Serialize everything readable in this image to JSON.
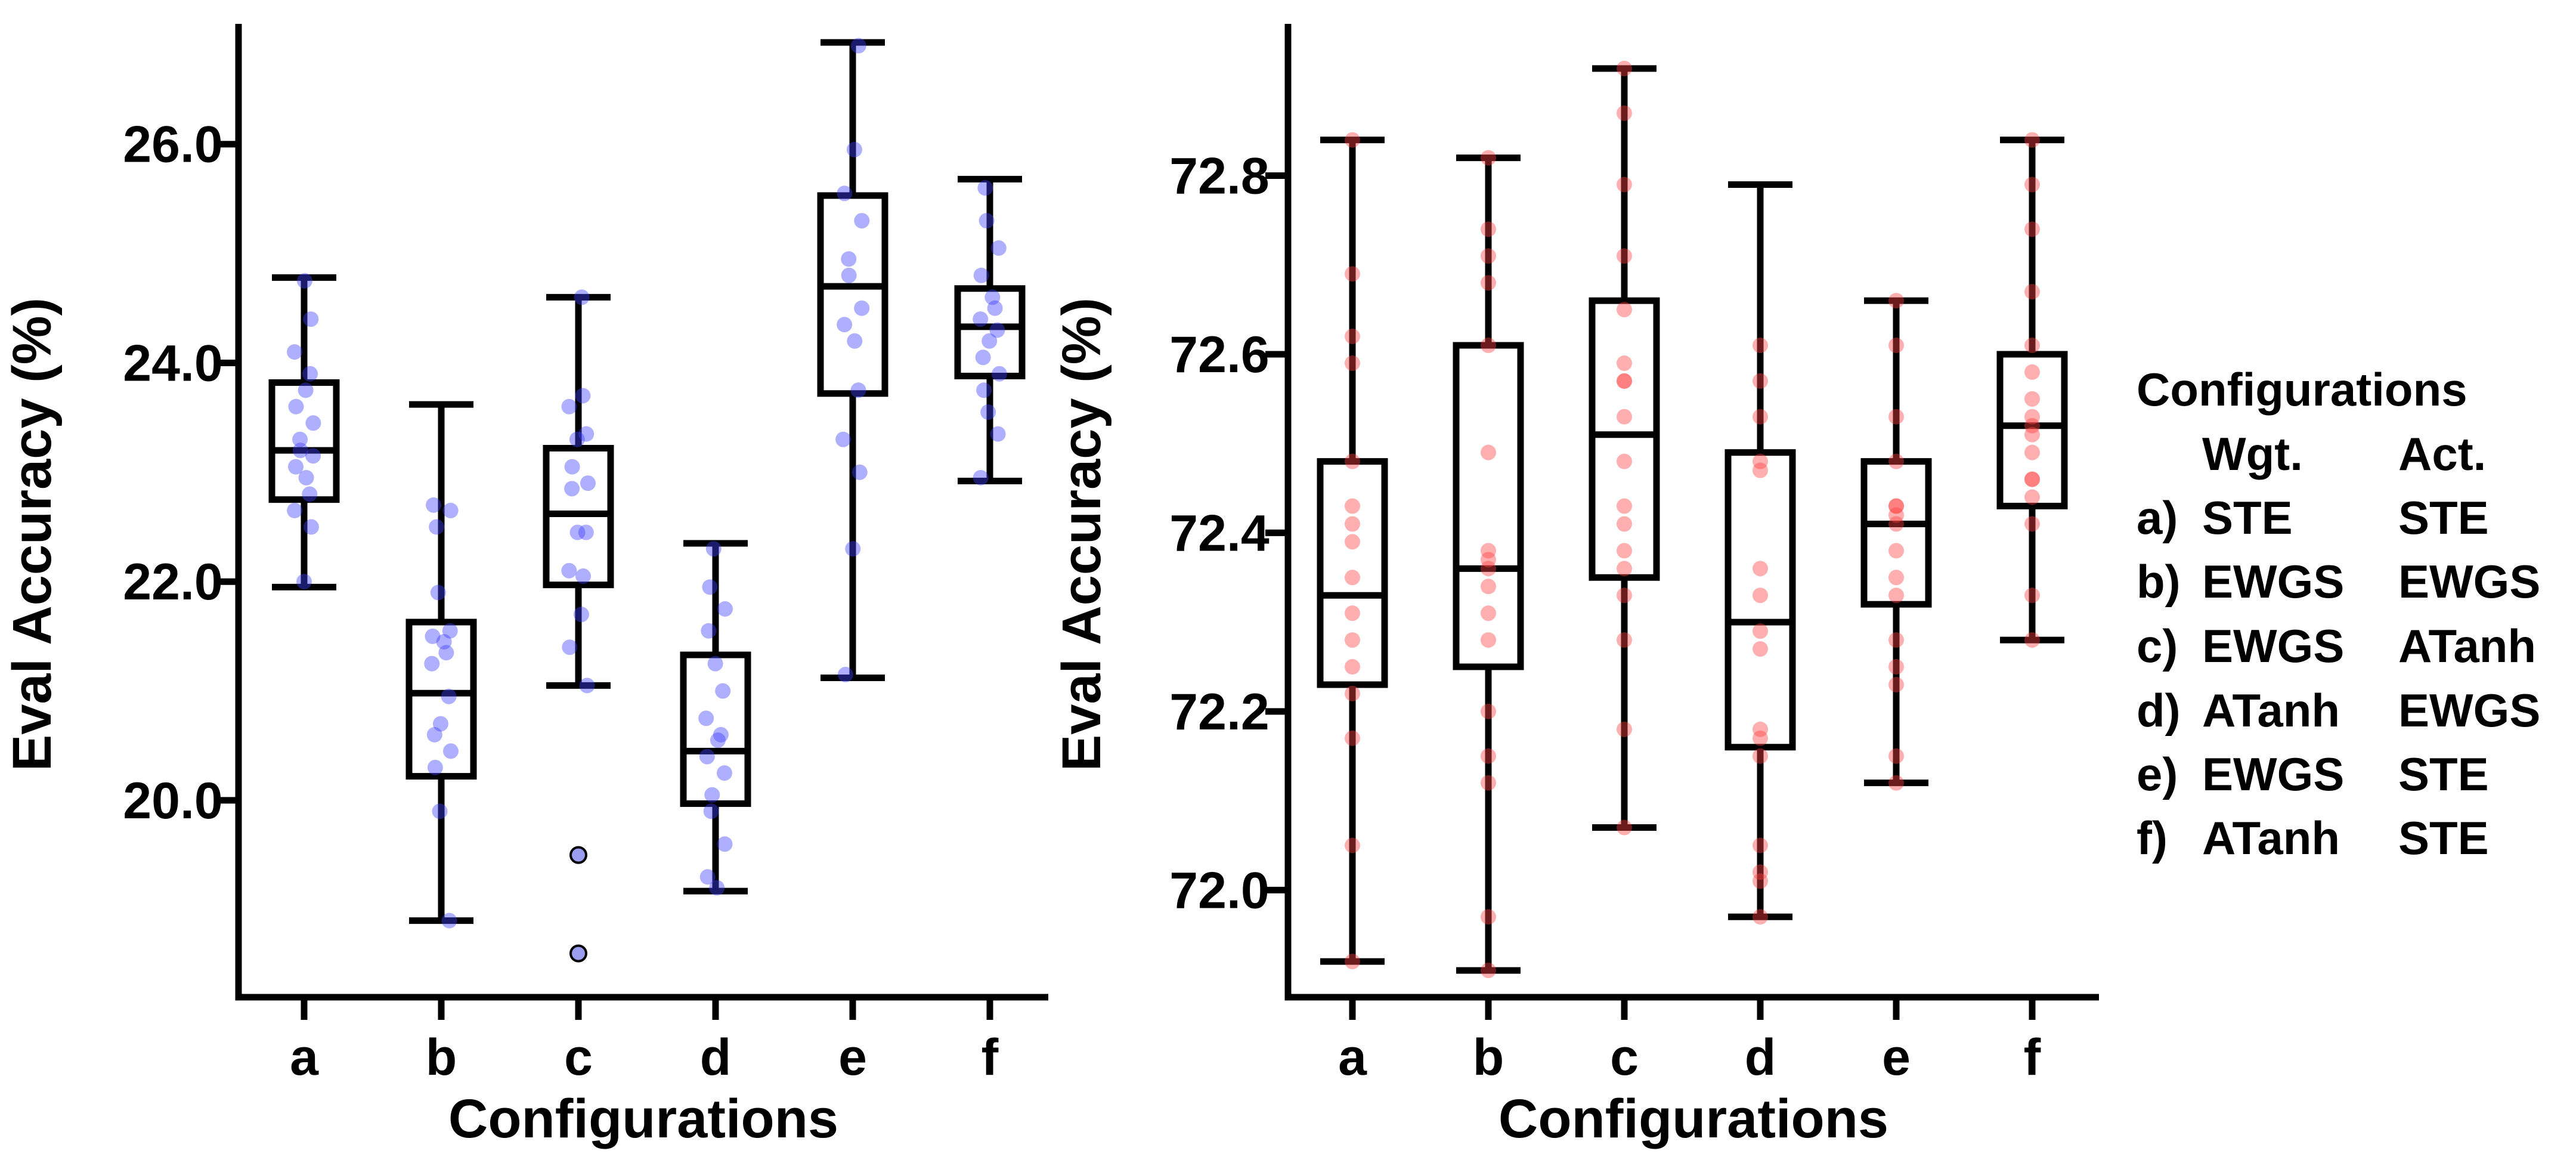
{
  "chart_data": [
    {
      "type": "box",
      "title": "",
      "xlabel": "Configurations",
      "ylabel": "Eval Accuracy (%)",
      "ylim": [
        18.2,
        27.1
      ],
      "yticks": [
        20.0,
        22.0,
        24.0,
        26.0
      ],
      "ytick_labels": [
        "20.0",
        "22.0",
        "24.0",
        "26.0"
      ],
      "categories": [
        "a",
        "b",
        "c",
        "d",
        "e",
        "f"
      ],
      "point_color": "#4040ff",
      "boxes": [
        {
          "category": "a",
          "whislo": 21.95,
          "q1": 22.75,
          "med": 23.2,
          "q3": 23.82,
          "whishi": 24.78,
          "fliers": [],
          "points": [
            22.0,
            22.5,
            22.65,
            22.8,
            22.95,
            23.05,
            23.15,
            23.2,
            23.3,
            23.45,
            23.6,
            23.75,
            23.9,
            24.1,
            24.4,
            24.75
          ]
        },
        {
          "category": "b",
          "whislo": 18.9,
          "q1": 20.22,
          "med": 20.98,
          "q3": 21.63,
          "whishi": 23.62,
          "fliers": [],
          "points": [
            18.9,
            19.9,
            20.3,
            20.45,
            20.6,
            20.7,
            20.95,
            21.25,
            21.35,
            21.45,
            21.5,
            21.55,
            21.9,
            22.5,
            22.65,
            22.7
          ]
        },
        {
          "category": "c",
          "whislo": 21.05,
          "q1": 21.97,
          "med": 22.62,
          "q3": 23.22,
          "whishi": 24.6,
          "fliers": [
            19.5,
            18.6
          ],
          "points": [
            21.05,
            21.4,
            21.7,
            22.05,
            22.1,
            22.45,
            22.45,
            22.85,
            22.9,
            23.05,
            23.3,
            23.35,
            23.6,
            23.7,
            24.6
          ]
        },
        {
          "category": "d",
          "whislo": 19.17,
          "q1": 19.97,
          "med": 20.45,
          "q3": 21.33,
          "whishi": 22.35,
          "fliers": [],
          "points": [
            19.2,
            19.3,
            19.6,
            19.9,
            20.05,
            20.25,
            20.4,
            20.55,
            20.6,
            20.75,
            21.0,
            21.25,
            21.55,
            21.75,
            21.95,
            22.3
          ]
        },
        {
          "category": "e",
          "whislo": 21.12,
          "q1": 23.72,
          "med": 24.7,
          "q3": 25.53,
          "whishi": 26.93,
          "fliers": [],
          "points": [
            21.15,
            22.3,
            23.0,
            23.3,
            23.75,
            24.2,
            24.35,
            24.5,
            24.8,
            24.95,
            25.3,
            25.55,
            25.95,
            26.9
          ]
        },
        {
          "category": "f",
          "whislo": 22.92,
          "q1": 23.88,
          "med": 24.33,
          "q3": 24.68,
          "whishi": 25.68,
          "fliers": [],
          "points": [
            22.95,
            23.35,
            23.55,
            23.75,
            23.9,
            24.05,
            24.2,
            24.3,
            24.4,
            24.5,
            24.6,
            24.8,
            25.05,
            25.3,
            25.6
          ]
        }
      ]
    },
    {
      "type": "box",
      "title": "",
      "xlabel": "Configurations",
      "ylabel": "Eval Accuracy (%)",
      "ylim": [
        71.88,
        72.97
      ],
      "yticks": [
        72.0,
        72.2,
        72.4,
        72.6,
        72.8
      ],
      "ytick_labels": [
        "72.0",
        "72.2",
        "72.4",
        "72.6",
        "72.8"
      ],
      "categories": [
        "a",
        "b",
        "c",
        "d",
        "e",
        "f"
      ],
      "point_color": "#ff4040",
      "boxes": [
        {
          "category": "a",
          "whislo": 71.92,
          "q1": 72.23,
          "med": 72.33,
          "q3": 72.48,
          "whishi": 72.84,
          "fliers": [],
          "points": [
            71.92,
            72.05,
            72.17,
            72.22,
            72.25,
            72.28,
            72.31,
            72.35,
            72.39,
            72.41,
            72.43,
            72.48,
            72.59,
            72.62,
            72.69,
            72.84
          ]
        },
        {
          "category": "b",
          "whislo": 71.91,
          "q1": 72.25,
          "med": 72.36,
          "q3": 72.61,
          "whishi": 72.82,
          "fliers": [],
          "points": [
            71.91,
            71.97,
            72.12,
            72.15,
            72.2,
            72.28,
            72.31,
            72.34,
            72.36,
            72.37,
            72.38,
            72.49,
            72.61,
            72.68,
            72.71,
            72.74,
            72.82
          ]
        },
        {
          "category": "c",
          "whislo": 72.07,
          "q1": 72.35,
          "med": 72.51,
          "q3": 72.66,
          "whishi": 72.92,
          "fliers": [],
          "points": [
            72.07,
            72.18,
            72.28,
            72.33,
            72.36,
            72.38,
            72.41,
            72.43,
            72.48,
            72.53,
            72.57,
            72.57,
            72.59,
            72.65,
            72.71,
            72.79,
            72.87,
            72.92
          ]
        },
        {
          "category": "d",
          "whislo": 71.97,
          "q1": 72.16,
          "med": 72.3,
          "q3": 72.49,
          "whishi": 72.79,
          "fliers": [],
          "points": [
            71.97,
            72.01,
            72.02,
            72.05,
            72.15,
            72.17,
            72.18,
            72.27,
            72.29,
            72.33,
            72.36,
            72.47,
            72.48,
            72.53,
            72.57,
            72.61
          ]
        },
        {
          "category": "e",
          "whislo": 72.12,
          "q1": 72.32,
          "med": 72.41,
          "q3": 72.48,
          "whishi": 72.66,
          "fliers": [],
          "points": [
            72.12,
            72.15,
            72.23,
            72.25,
            72.28,
            72.33,
            72.35,
            72.38,
            72.41,
            72.42,
            72.43,
            72.43,
            72.48,
            72.53,
            72.61,
            72.66
          ]
        },
        {
          "category": "f",
          "whislo": 72.28,
          "q1": 72.43,
          "med": 72.52,
          "q3": 72.6,
          "whishi": 72.84,
          "fliers": [],
          "points": [
            72.28,
            72.33,
            72.41,
            72.44,
            72.46,
            72.46,
            72.49,
            72.51,
            72.52,
            72.53,
            72.55,
            72.58,
            72.61,
            72.67,
            72.74,
            72.79,
            72.84
          ]
        }
      ]
    }
  ],
  "legend": {
    "title": "Configurations",
    "col1_header": "Wgt.",
    "col2_header": "Act.",
    "rows": [
      {
        "key": "a)",
        "wgt": "STE",
        "act": "STE"
      },
      {
        "key": "b)",
        "wgt": "EWGS",
        "act": "EWGS"
      },
      {
        "key": "c)",
        "wgt": "EWGS",
        "act": "ATanh"
      },
      {
        "key": "d)",
        "wgt": "ATanh",
        "act": "EWGS"
      },
      {
        "key": "e)",
        "wgt": "EWGS",
        "act": "STE"
      },
      {
        "key": "f)",
        "wgt": "ATanh",
        "act": "STE"
      }
    ]
  }
}
